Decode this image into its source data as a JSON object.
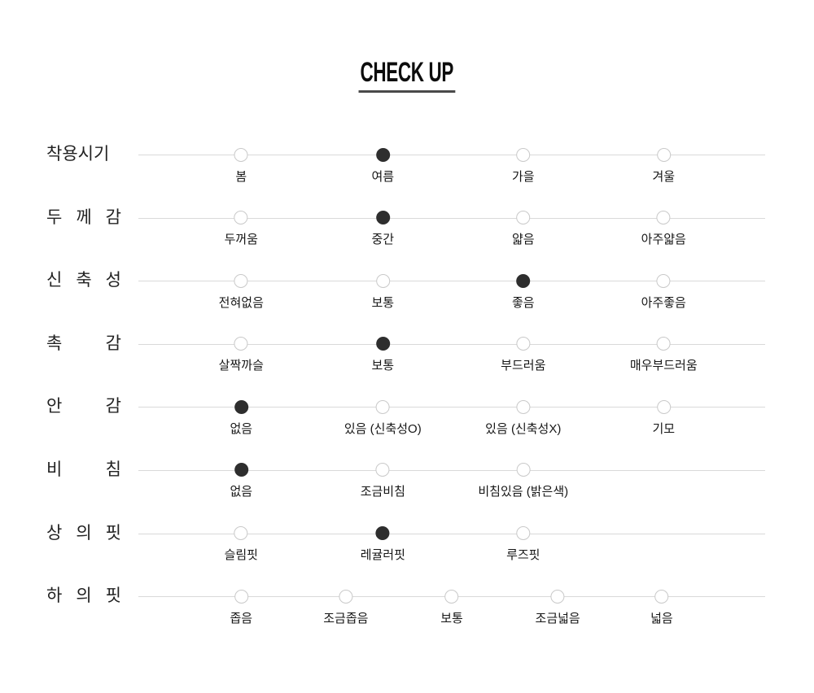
{
  "title": "CHECK UP",
  "colors": {
    "background": "#ffffff",
    "selected_dot": "#2e2e2e",
    "unselected_dot_border": "#c9c9c9",
    "track_line": "#d9d9d9",
    "title_underline": "#4a4a4a",
    "row_label_text": "#222222",
    "option_label_text": "#161616"
  },
  "chart_data": {
    "type": "table",
    "title": "CHECK UP",
    "legend_position": "none",
    "grid": "off",
    "rows": [
      {
        "label": "착용시기",
        "label_display": "착용시기",
        "selected": "여름",
        "options": [
          {
            "text": "봄",
            "pos": 16.4,
            "selected": false
          },
          {
            "text": "여름",
            "pos": 39.0,
            "selected": true
          },
          {
            "text": "가을",
            "pos": 61.4,
            "selected": false
          },
          {
            "text": "겨울",
            "pos": 83.8,
            "selected": false
          }
        ]
      },
      {
        "label": "두께감",
        "label_display": "두 께 감",
        "selected": "중간",
        "options": [
          {
            "text": "두꺼움",
            "pos": 16.4,
            "selected": false
          },
          {
            "text": "중간",
            "pos": 39.0,
            "selected": true
          },
          {
            "text": "얇음",
            "pos": 61.4,
            "selected": false
          },
          {
            "text": "아주얇음",
            "pos": 83.8,
            "selected": false
          }
        ]
      },
      {
        "label": "신축성",
        "label_display": "신 축 성",
        "selected": "좋음",
        "options": [
          {
            "text": "전혀없음",
            "pos": 16.4,
            "selected": false
          },
          {
            "text": "보통",
            "pos": 39.0,
            "selected": false
          },
          {
            "text": "좋음",
            "pos": 61.4,
            "selected": true
          },
          {
            "text": "아주좋음",
            "pos": 83.8,
            "selected": false
          }
        ]
      },
      {
        "label": "촉감",
        "label_display": "촉 감",
        "selected": "보통",
        "options": [
          {
            "text": "살짝까슬",
            "pos": 16.4,
            "selected": false
          },
          {
            "text": "보통",
            "pos": 39.0,
            "selected": true
          },
          {
            "text": "부드러움",
            "pos": 61.4,
            "selected": false
          },
          {
            "text": "매우부드러움",
            "pos": 83.8,
            "selected": false
          }
        ]
      },
      {
        "label": "안감",
        "label_display": "안 감",
        "selected": "없음",
        "options": [
          {
            "text": "없음",
            "pos": 16.4,
            "selected": true
          },
          {
            "text": "있음 (신축성O)",
            "pos": 39.0,
            "selected": false
          },
          {
            "text": "있음 (신축성X)",
            "pos": 61.4,
            "selected": false
          },
          {
            "text": "기모",
            "pos": 83.8,
            "selected": false
          }
        ]
      },
      {
        "label": "비침",
        "label_display": "비 침",
        "selected": "없음",
        "options": [
          {
            "text": "없음",
            "pos": 16.4,
            "selected": true
          },
          {
            "text": "조금비침",
            "pos": 39.0,
            "selected": false
          },
          {
            "text": "비침있음 (밝은색)",
            "pos": 61.4,
            "selected": false
          }
        ]
      },
      {
        "label": "상의핏",
        "label_display": "상 의 핏",
        "selected": "레귤러핏",
        "options": [
          {
            "text": "슬림핏",
            "pos": 16.4,
            "selected": false
          },
          {
            "text": "레귤러핏",
            "pos": 39.0,
            "selected": true
          },
          {
            "text": "루즈핏",
            "pos": 61.4,
            "selected": false
          }
        ]
      },
      {
        "label": "하의핏",
        "label_display": "하 의 핏",
        "selected": null,
        "options": [
          {
            "text": "좁음",
            "pos": 16.4,
            "selected": false
          },
          {
            "text": "조금좁음",
            "pos": 33.1,
            "selected": false
          },
          {
            "text": "보통",
            "pos": 50.0,
            "selected": false
          },
          {
            "text": "조금넓음",
            "pos": 66.9,
            "selected": false
          },
          {
            "text": "넓음",
            "pos": 83.5,
            "selected": false
          }
        ]
      }
    ]
  }
}
